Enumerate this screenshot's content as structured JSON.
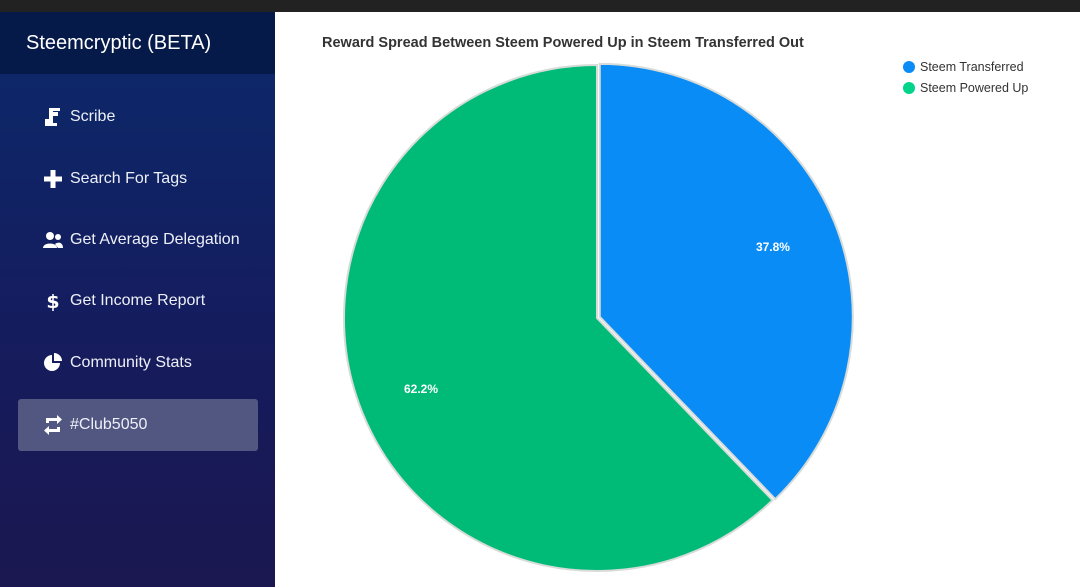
{
  "app": {
    "title": "Steemcryptic (BETA)"
  },
  "sidebar": {
    "items": [
      {
        "label": "Scribe",
        "icon": "scribe-icon",
        "active": false
      },
      {
        "label": "Search For Tags",
        "icon": "plus-icon",
        "active": false
      },
      {
        "label": "Get Average Delegation",
        "icon": "users-icon",
        "active": false
      },
      {
        "label": "Get Income Report",
        "icon": "dollar-icon",
        "active": false
      },
      {
        "label": "Community Stats",
        "icon": "pie-chart-icon",
        "active": false
      },
      {
        "label": "#Club5050",
        "icon": "retweet-icon",
        "active": true
      }
    ]
  },
  "chart_data": {
    "type": "pie",
    "title": "Reward Spread Between Steem Powered Up in Steem Transferred Out",
    "slices": [
      {
        "name": "Steem Transferred",
        "value": 37.8,
        "label": "37.8%",
        "color": "#0a8cf7"
      },
      {
        "name": "Steem Powered Up",
        "value": 62.2,
        "label": "62.2%",
        "color": "#00bb77"
      }
    ],
    "legend": [
      {
        "name": "Steem Transferred",
        "color": "#0a8cf7"
      },
      {
        "name": "Steem Powered Up",
        "color": "#00d48a"
      }
    ],
    "legend_position": "top-right"
  },
  "colors": {
    "sidebar_brand_bg": "#061a4a",
    "sidebar_active_bg": "#525782",
    "topbar": "#222222"
  }
}
